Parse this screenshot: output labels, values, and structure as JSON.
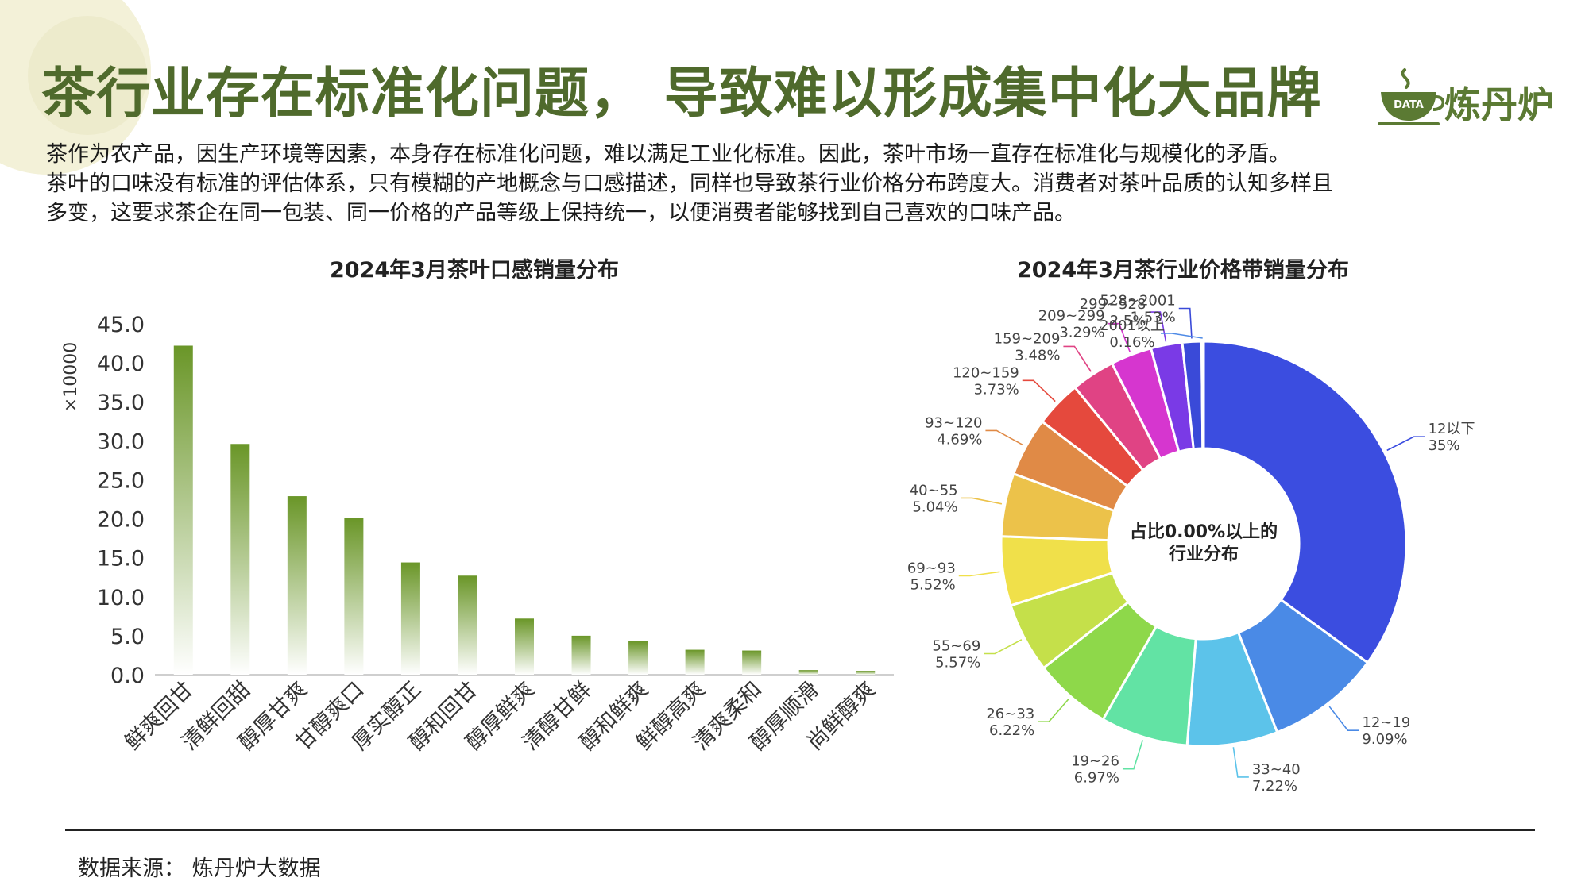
{
  "page": {
    "title": "茶行业存在标准化问题， 导致难以形成集中化大品牌",
    "logo_text": "炼丹炉",
    "logo_badge": "DATA",
    "intro": [
      "茶作为农产品，因生产环境等因素，本身存在标准化问题，难以满足工业化标准。因此，茶叶市场一直存在标准化与规模化的矛盾。",
      "茶叶的口味没有标准的评估体系，只有模糊的产地概念与口感描述，同样也导致茶行业价格分布跨度大。消费者对茶叶品质的认知多样且",
      "多变，这要求茶企在同一包装、同一价格的产品等级上保持统一，以便消费者能够找到自己喜欢的口味产品。"
    ],
    "source": "数据来源：  炼丹炉大数据"
  },
  "colors": {
    "title": "#4f6a2c",
    "bar_top": "#6a9628",
    "bar_bottom": "#ffffff"
  },
  "chart_data": [
    {
      "type": "bar",
      "title": "2024年3月茶叶口感销量分布",
      "ylabel": "×10000",
      "ylim": [
        0,
        45
      ],
      "yticks": [
        "0.0",
        "5.0",
        "10.0",
        "15.0",
        "20.0",
        "25.0",
        "30.0",
        "35.0",
        "40.0",
        "45.0"
      ],
      "categories": [
        "鲜爽回甘",
        "清鲜回甜",
        "醇厚甘爽",
        "甘醇爽口",
        "厚实醇正",
        "醇和回甘",
        "醇厚鲜爽",
        "清醇甘鲜",
        "醇和鲜爽",
        "鲜醇高爽",
        "清爽柔和",
        "醇厚顺滑",
        "尚鲜醇爽"
      ],
      "values": [
        42.2,
        29.6,
        22.9,
        20.1,
        14.4,
        12.7,
        7.2,
        5.0,
        4.3,
        3.2,
        3.1,
        0.6,
        0.5
      ]
    },
    {
      "type": "pie",
      "title": "2024年3月茶行业价格带销量分布",
      "center_label": [
        "占比0.00%以上的",
        "行业分布"
      ],
      "slices": [
        {
          "label": "12以下",
          "value": 35,
          "pct": "35%",
          "color": "#3b4de0"
        },
        {
          "label": "12~19",
          "value": 9.09,
          "pct": "9.09%",
          "color": "#4a8ae6"
        },
        {
          "label": "33~40",
          "value": 7.22,
          "pct": "7.22%",
          "color": "#5cc3ea"
        },
        {
          "label": "19~26",
          "value": 6.97,
          "pct": "6.97%",
          "color": "#62e3a4"
        },
        {
          "label": "26~33",
          "value": 6.22,
          "pct": "6.22%",
          "color": "#8ed84a"
        },
        {
          "label": "55~69",
          "value": 5.57,
          "pct": "5.57%",
          "color": "#c5e04a"
        },
        {
          "label": "69~93",
          "value": 5.52,
          "pct": "5.52%",
          "color": "#f0e04a"
        },
        {
          "label": "40~55",
          "value": 5.04,
          "pct": "5.04%",
          "color": "#ecc24a"
        },
        {
          "label": "93~120",
          "value": 4.69,
          "pct": "4.69%",
          "color": "#e08a46"
        },
        {
          "label": "120~159",
          "value": 3.73,
          "pct": "3.73%",
          "color": "#e5493d"
        },
        {
          "label": "159~209",
          "value": 3.48,
          "pct": "3.48%",
          "color": "#e04384"
        },
        {
          "label": "209~299",
          "value": 3.29,
          "pct": "3.29%",
          "color": "#d636cf"
        },
        {
          "label": "299~528",
          "value": 2.5,
          "pct": "2.5%",
          "color": "#7a3ae6"
        },
        {
          "label": "528~2001",
          "value": 1.53,
          "pct": "1.53%",
          "color": "#3a4ad8"
        },
        {
          "label": "2001以上",
          "value": 0.16,
          "pct": "0.16%",
          "color": "#4f8be6"
        }
      ]
    }
  ]
}
